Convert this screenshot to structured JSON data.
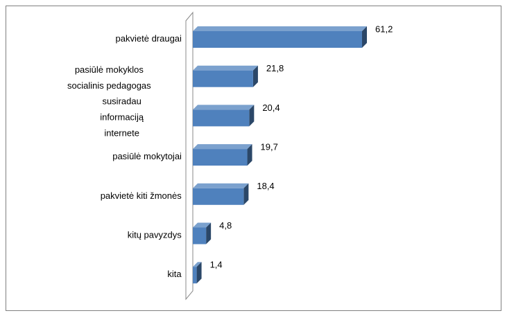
{
  "chart_data": {
    "type": "bar3d-horizontal",
    "categories": [
      [
        "pakvietė draugai"
      ],
      [
        "pasiūlė mokyklos",
        "socialinis pedagogas"
      ],
      [
        "susiradau",
        "informaciją",
        "internete"
      ],
      [
        "pasiūlė mokytojai"
      ],
      [
        "pakvietė kiti žmonės"
      ],
      [
        "kitų pavyzdys"
      ],
      [
        "kita"
      ]
    ],
    "values": [
      61.2,
      21.8,
      20.4,
      19.7,
      18.4,
      4.8,
      1.4
    ],
    "value_labels": [
      "61,2",
      "21,8",
      "20,4",
      "19,7",
      "18,4",
      "4,8",
      "1,4"
    ],
    "color": "#4f81bd"
  }
}
